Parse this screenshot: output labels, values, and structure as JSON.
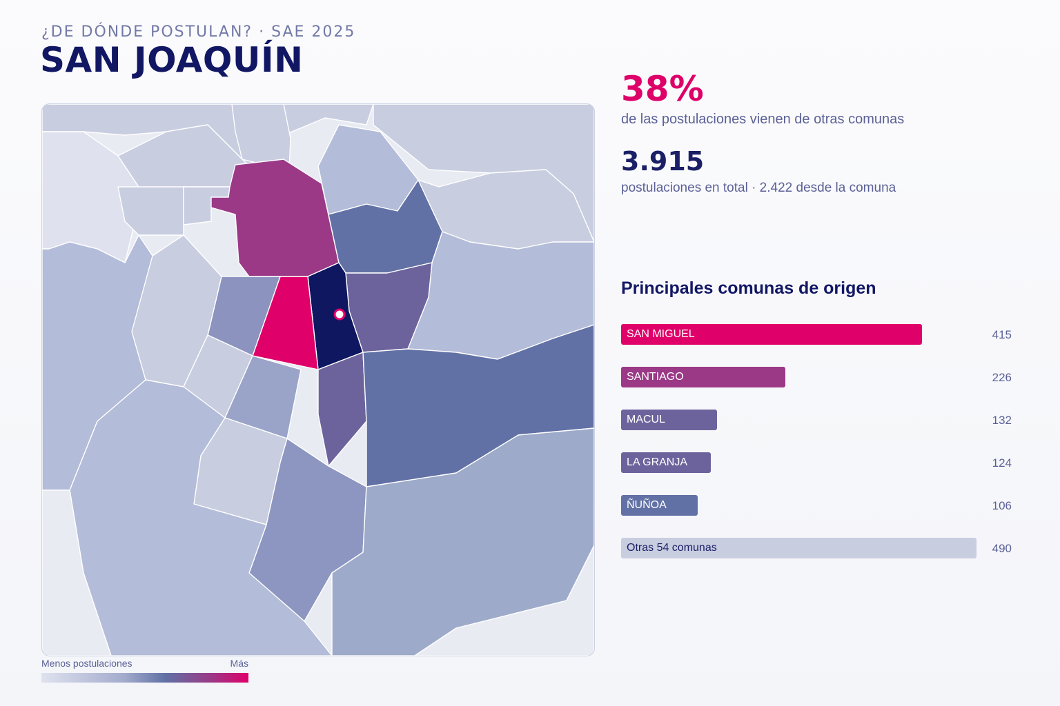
{
  "header": {
    "kicker": "¿DE DÓNDE POSTULAN? · SAE 2025",
    "title": "SAN JOAQUÍN"
  },
  "stats": {
    "pct_value": "38%",
    "pct_label": "de las postulaciones vienen de otras comunas",
    "total_value": "3.915",
    "total_label": "postulaciones en total · 2.422 desde la comuna"
  },
  "map": {
    "legend_min": "Menos postulaciones",
    "legend_max": "Más",
    "colors": {
      "selected": "#0f1760",
      "top": "#e0006a",
      "high": "#9b3987",
      "mid_high": "#6d639c",
      "mid": "#6271a5",
      "low": "#a6b0d0",
      "lower": "#b3bcd8",
      "lowest": "#c8cde0"
    }
  },
  "origins": {
    "title": "Principales comunas de origen",
    "items": [
      {
        "label": "SAN MIGUEL",
        "value": 415,
        "color": "#e0006a"
      },
      {
        "label": "SANTIAGO",
        "value": 226,
        "color": "#9b3987"
      },
      {
        "label": "MACUL",
        "value": 132,
        "color": "#6d639c"
      },
      {
        "label": "LA GRANJA",
        "value": 124,
        "color": "#6d639c"
      },
      {
        "label": "ÑUÑOA",
        "value": 106,
        "color": "#6271a5"
      },
      {
        "label": "Otras 54 comunas",
        "value": 490,
        "color": "#c8cde0"
      }
    ]
  }
}
